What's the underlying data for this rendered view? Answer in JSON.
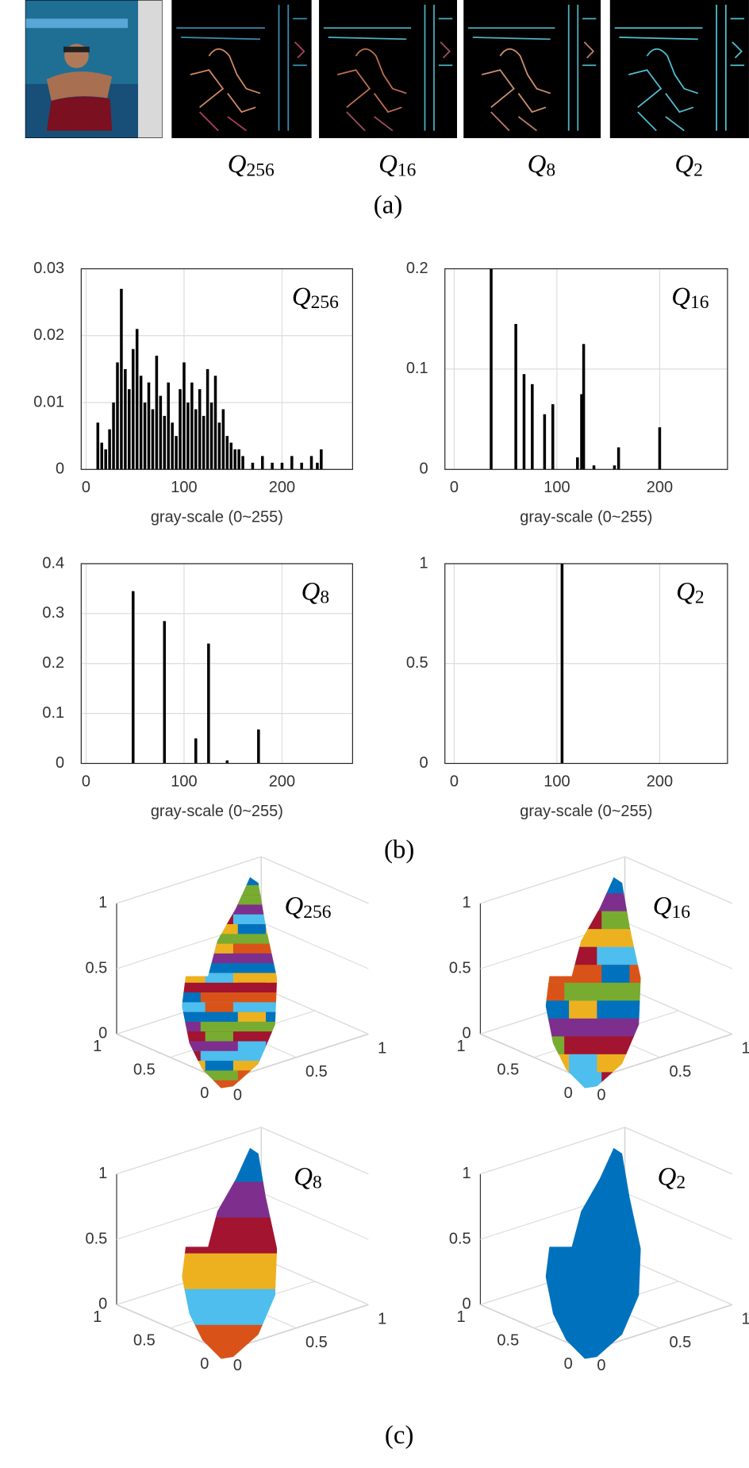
{
  "panel_a": {
    "labels": [
      {
        "q": "Q",
        "sub": "256"
      },
      {
        "q": "Q",
        "sub": "16"
      },
      {
        "q": "Q",
        "sub": "8"
      },
      {
        "q": "Q",
        "sub": "2"
      }
    ],
    "caption": "(a)"
  },
  "chart_data": [
    {
      "type": "bar",
      "label": {
        "q": "Q",
        "sub": "256"
      },
      "xlabel": "gray-scale (0~255)",
      "x": [
        12,
        16,
        20,
        24,
        28,
        32,
        36,
        40,
        44,
        48,
        52,
        56,
        60,
        64,
        68,
        72,
        76,
        80,
        84,
        88,
        92,
        96,
        100,
        104,
        108,
        112,
        116,
        120,
        124,
        128,
        132,
        136,
        140,
        144,
        148,
        152,
        156,
        160,
        170,
        180,
        190,
        200,
        210,
        220,
        230,
        236,
        240
      ],
      "values": [
        0.007,
        0.004,
        0.003,
        0.006,
        0.01,
        0.016,
        0.027,
        0.015,
        0.012,
        0.018,
        0.021,
        0.014,
        0.01,
        0.013,
        0.009,
        0.017,
        0.011,
        0.008,
        0.013,
        0.007,
        0.005,
        0.012,
        0.016,
        0.01,
        0.013,
        0.009,
        0.012,
        0.008,
        0.015,
        0.01,
        0.014,
        0.007,
        0.009,
        0.005,
        0.004,
        0.003,
        0.003,
        0.002,
        0.001,
        0.002,
        0.001,
        0.001,
        0.002,
        0.001,
        0.002,
        0.001,
        0.003
      ],
      "color": "#000000",
      "xlim": [
        -5,
        272
      ],
      "xticks": [
        0,
        100,
        200
      ],
      "ylim": [
        0,
        0.03
      ],
      "yticks": [
        0,
        0.01,
        0.02,
        0.03
      ],
      "grid": true
    },
    {
      "type": "bar",
      "label": {
        "q": "Q",
        "sub": "16"
      },
      "xlabel": "gray-scale (0~255)",
      "x": [
        36,
        60,
        68,
        76,
        88,
        96,
        120,
        124,
        126,
        136,
        156,
        160,
        200
      ],
      "values": [
        0.2,
        0.145,
        0.095,
        0.085,
        0.055,
        0.065,
        0.012,
        0.075,
        0.125,
        0.004,
        0.004,
        0.022,
        0.042
      ],
      "color": "#000000",
      "xlim": [
        -9,
        266
      ],
      "xticks": [
        0,
        100,
        200
      ],
      "ylim": [
        0,
        0.2
      ],
      "yticks": [
        0,
        0.1,
        0.2
      ],
      "grid": true
    },
    {
      "type": "bar",
      "label": {
        "q": "Q",
        "sub": "8"
      },
      "xlabel": "gray-scale (0~255)",
      "x": [
        48,
        80,
        112,
        125,
        144,
        176
      ],
      "values": [
        0.345,
        0.285,
        0.05,
        0.24,
        0.006,
        0.068
      ],
      "color": "#000000",
      "xlim": [
        -5,
        272
      ],
      "xticks": [
        0,
        100,
        200
      ],
      "ylim": [
        0,
        0.4
      ],
      "yticks": [
        0,
        0.1,
        0.2,
        0.3,
        0.4
      ],
      "grid": true
    },
    {
      "type": "bar",
      "label": {
        "q": "Q",
        "sub": "2"
      },
      "xlabel": "gray-scale (0~255)",
      "x": [
        105
      ],
      "values": [
        1
      ],
      "color": "#000000",
      "xlim": [
        -9,
        266
      ],
      "xticks": [
        0,
        100,
        200
      ],
      "ylim": [
        0,
        1
      ],
      "yticks": [
        0,
        0.5,
        1
      ],
      "grid": true
    }
  ],
  "caption_b": "(b)",
  "panel_c": {
    "plots": [
      {
        "label": {
          "q": "Q",
          "sub": "256"
        },
        "zticks": [
          0,
          0.5,
          1
        ],
        "yticks": [
          0,
          0.5,
          1
        ],
        "xticks": [
          0,
          0.5,
          1
        ]
      },
      {
        "label": {
          "q": "Q",
          "sub": "16"
        },
        "zticks": [
          0,
          0.5,
          1
        ],
        "yticks": [
          0,
          0.5,
          1
        ],
        "xticks": [
          0,
          0.5,
          1
        ]
      },
      {
        "label": {
          "q": "Q",
          "sub": "8"
        },
        "zticks": [
          0,
          0.5,
          1
        ],
        "yticks": [
          0,
          0.5,
          1
        ],
        "xticks": [
          0,
          0.5,
          1
        ]
      },
      {
        "label": {
          "q": "Q",
          "sub": "2"
        },
        "zticks": [
          0,
          0.5,
          1
        ],
        "yticks": [
          0,
          0.5,
          1
        ],
        "xticks": [
          0,
          0.5,
          1
        ]
      }
    ],
    "caption": "(c)"
  }
}
